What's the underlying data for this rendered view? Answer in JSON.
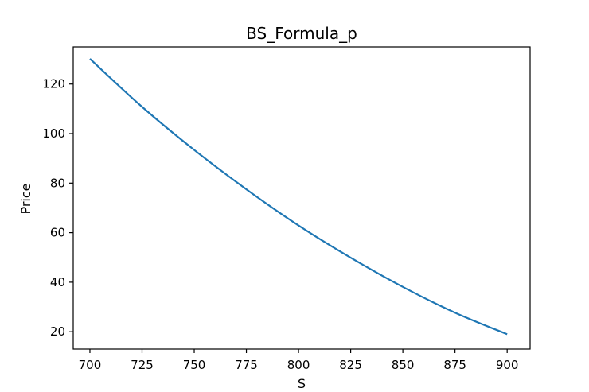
{
  "chart_data": {
    "type": "line",
    "title": "BS_Formula_p",
    "xlabel": "S",
    "ylabel": "Price",
    "xlim": [
      692,
      911
    ],
    "ylim": [
      13,
      135
    ],
    "grid": false,
    "x_ticks": [
      700,
      725,
      750,
      775,
      800,
      825,
      850,
      875,
      900
    ],
    "y_ticks": [
      20,
      40,
      60,
      80,
      100,
      120
    ],
    "series": [
      {
        "color": "#1f77b4",
        "x": [
          700,
          725,
          750,
          775,
          800,
          825,
          850,
          875,
          900
        ],
        "y": [
          130.2,
          110.8,
          93.4,
          77.5,
          62.9,
          49.9,
          38.1,
          27.7,
          19.0
        ]
      }
    ]
  }
}
